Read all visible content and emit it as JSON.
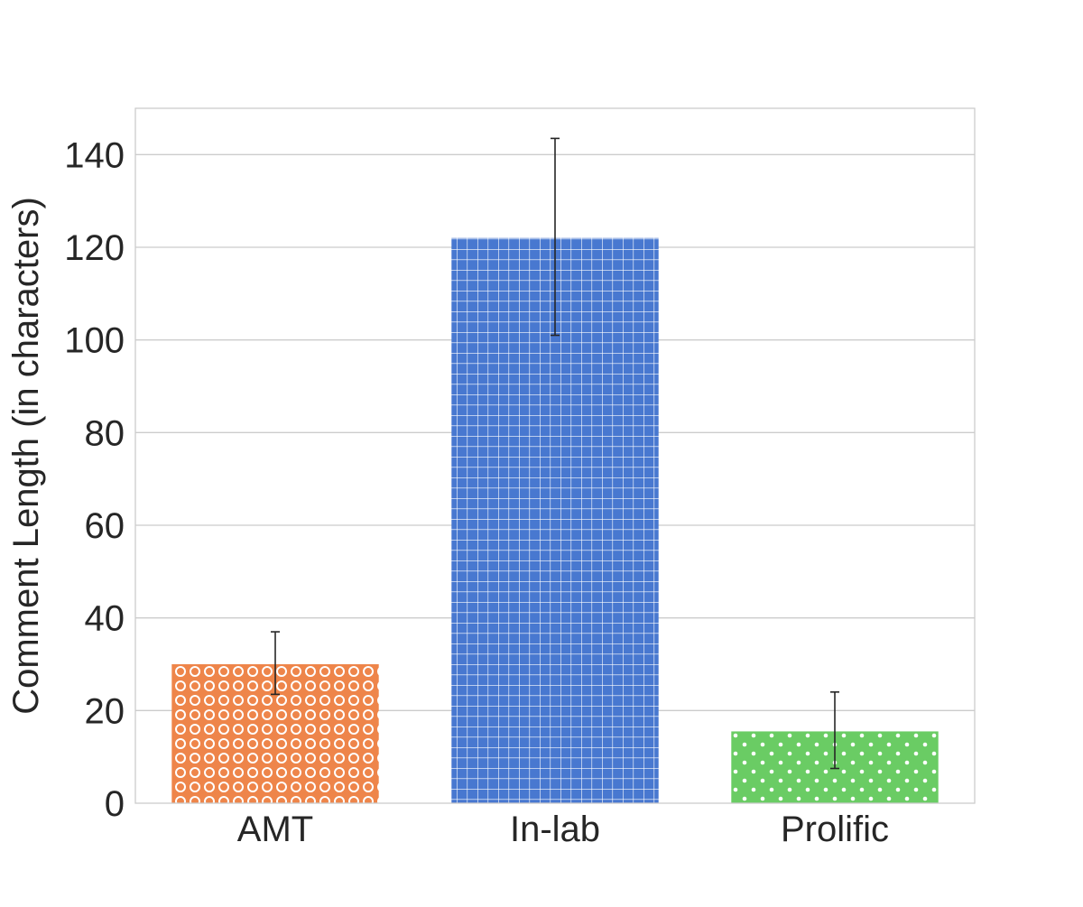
{
  "chart_data": {
    "type": "bar",
    "categories": [
      "AMT",
      "In-lab",
      "Prolific"
    ],
    "values": [
      30.0,
      122.0,
      15.5
    ],
    "error_bars": [
      {
        "low": 23.5,
        "high": 37.0
      },
      {
        "low": 101.0,
        "high": 143.5
      },
      {
        "low": 7.5,
        "high": 24.0
      }
    ],
    "title": "",
    "xlabel": "",
    "ylabel": "Comment Length (in characters)",
    "ylim": [
      0,
      150
    ],
    "yticks": [
      0,
      20,
      40,
      60,
      80,
      100,
      120,
      140
    ],
    "ytick_labels": [
      "0",
      "20",
      "40",
      "60",
      "80",
      "100",
      "120",
      "140"
    ],
    "grid": "y",
    "colors": [
      "#ee854a",
      "#4878d0",
      "#6acc64"
    ],
    "patterns": [
      "circles",
      "grid",
      "dots"
    ],
    "grid_color": "#cccccc",
    "frame_color": "#cccccc",
    "errorbar_color": "#262626"
  }
}
